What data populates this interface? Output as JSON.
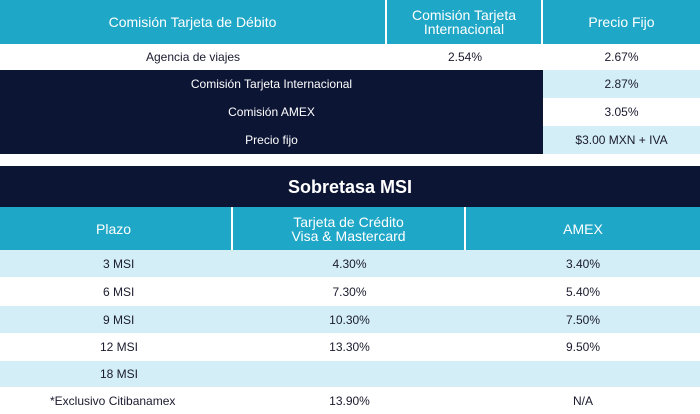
{
  "table1": {
    "headers": [
      "Comisión Tarjeta de Débito",
      "Comisión Tarjeta\nInternacional",
      "Precio Fijo"
    ],
    "first_row": {
      "label": "Agencia de viajes",
      "intl": "2.54%",
      "fijo": "2.67%"
    },
    "dark_rows": [
      {
        "label": "Comisión Tarjeta Internacional",
        "value": "2.87%"
      },
      {
        "label": "Comisión AMEX",
        "value": "3.05%"
      },
      {
        "label": "Precio fijo",
        "value": "$3.00 MXN + IVA"
      }
    ]
  },
  "table2": {
    "title": "Sobretasa MSI",
    "headers": [
      "Plazo",
      "Tarjeta de Crédito\nVisa & Mastercard",
      "AMEX"
    ],
    "rows": [
      {
        "plazo": "3 MSI",
        "visa": "4.30%",
        "amex": "3.40%"
      },
      {
        "plazo": "6 MSI",
        "visa": "7.30%",
        "amex": "5.40%"
      },
      {
        "plazo": "9 MSI",
        "visa": "10.30%",
        "amex": "7.50%"
      },
      {
        "plazo": "12 MSI",
        "visa": "13.30%",
        "amex": "9.50%"
      },
      {
        "plazo": "18 MSI",
        "visa": "",
        "amex": ""
      },
      {
        "plazo": "*Exclusivo Citibanamex",
        "visa": "13.90%",
        "amex": "N/A"
      }
    ]
  }
}
